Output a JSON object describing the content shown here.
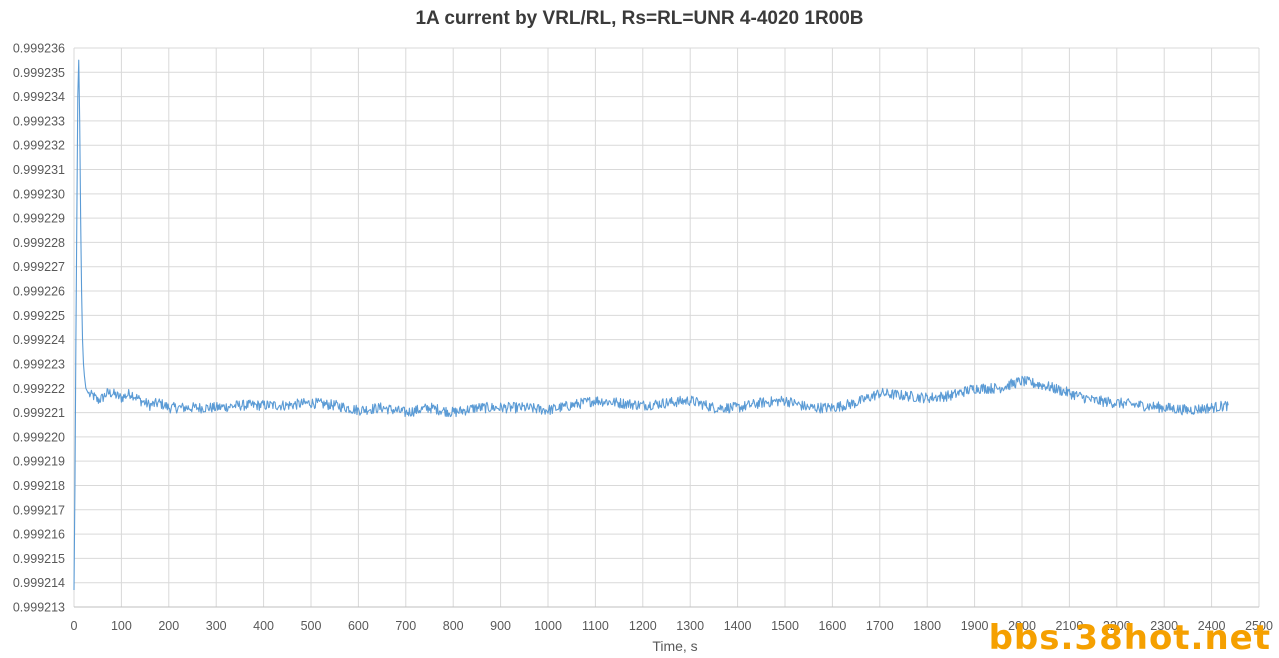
{
  "chart_data": {
    "type": "line",
    "title": "1A current by VRL/RL, Rs=RL=UNR 4-4020 1R00B",
    "xlabel": "Time, s",
    "ylabel": "",
    "xlim": [
      0,
      2500
    ],
    "ylim": [
      0.999213,
      0.999236
    ],
    "x_ticks": [
      "0",
      "100",
      "200",
      "300",
      "400",
      "500",
      "600",
      "700",
      "800",
      "900",
      "1000",
      "1100",
      "1200",
      "1300",
      "1400",
      "1500",
      "1600",
      "1700",
      "1800",
      "1900",
      "2000",
      "2100",
      "2200",
      "2300",
      "2400",
      "2500"
    ],
    "y_ticks": [
      "0.999213",
      "0.999214",
      "0.999215",
      "0.999216",
      "0.999217",
      "0.999218",
      "0.999219",
      "0.999220",
      "0.999221",
      "0.999222",
      "0.999223",
      "0.999224",
      "0.999225",
      "0.999226",
      "0.999227",
      "0.999228",
      "0.999229",
      "0.999230",
      "0.999231",
      "0.999232",
      "0.999233",
      "0.999234",
      "0.999235",
      "0.999236"
    ],
    "grid": true,
    "legend": "none",
    "series": [
      {
        "color": "#5b9bd5",
        "x": [
          0,
          2,
          4,
          6,
          8,
          10,
          12,
          14,
          16,
          18,
          20,
          22,
          25,
          30,
          35,
          40,
          50,
          60,
          70,
          80,
          90,
          100,
          120,
          140,
          160,
          180,
          200,
          250,
          300,
          350,
          400,
          450,
          500,
          550,
          600,
          650,
          700,
          750,
          800,
          850,
          900,
          950,
          1000,
          1050,
          1100,
          1150,
          1200,
          1250,
          1300,
          1350,
          1400,
          1450,
          1500,
          1550,
          1600,
          1650,
          1700,
          1750,
          1800,
          1850,
          1900,
          1950,
          2000,
          2050,
          2100,
          2150,
          2200,
          2250,
          2300,
          2350,
          2400,
          2435
        ],
        "values": [
          0.9992137,
          0.999218,
          0.999224,
          0.999229,
          0.999234,
          0.9992355,
          0.999233,
          0.999229,
          0.999226,
          0.999224,
          0.999223,
          0.9992225,
          0.999222,
          0.9992218,
          0.9992217,
          0.9992217,
          0.9992215,
          0.9992216,
          0.9992218,
          0.9992218,
          0.9992217,
          0.9992216,
          0.9992218,
          0.9992215,
          0.9992213,
          0.9992214,
          0.9992212,
          0.9992212,
          0.9992212,
          0.9992213,
          0.9992213,
          0.9992213,
          0.9992214,
          0.9992213,
          0.9992211,
          0.9992212,
          0.999221,
          0.9992212,
          0.999221,
          0.9992212,
          0.9992212,
          0.9992212,
          0.9992211,
          0.9992213,
          0.9992215,
          0.9992214,
          0.9992213,
          0.9992214,
          0.9992215,
          0.9992212,
          0.9992212,
          0.9992214,
          0.9992215,
          0.9992212,
          0.9992212,
          0.9992214,
          0.9992218,
          0.9992217,
          0.9992216,
          0.9992217,
          0.999222,
          0.999222,
          0.9992223,
          0.9992221,
          0.9992218,
          0.9992215,
          0.9992214,
          0.9992213,
          0.9992212,
          0.9992211,
          0.9992212,
          0.9992213
        ]
      }
    ],
    "noise_amplitude": 2e-07
  },
  "watermark": "bbs.38hot.net"
}
